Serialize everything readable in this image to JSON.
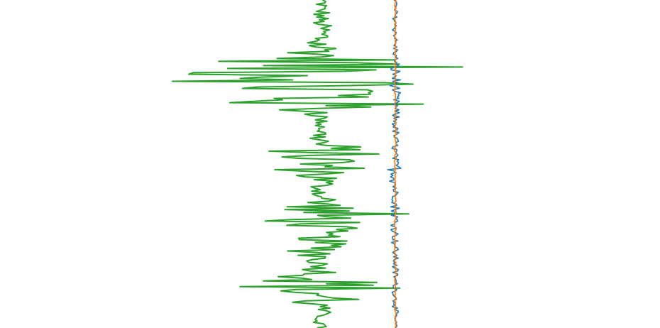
{
  "chart_data": {
    "type": "line",
    "orientation": "vertical-traces",
    "title": "",
    "xlabel": "",
    "ylabel": "",
    "axes_visible": false,
    "grid": false,
    "legend": "none",
    "y_samples": 230,
    "series": [
      {
        "color": "#2ca02c",
        "baseline": 0,
        "noise": 0.04,
        "envelope": [
          [
            0.0,
            0.04
          ],
          [
            0.03,
            0.05
          ],
          [
            0.06,
            0.03
          ],
          [
            0.09,
            0.07
          ],
          [
            0.12,
            0.1
          ],
          [
            0.15,
            0.12
          ],
          [
            0.17,
            0.2
          ],
          [
            0.19,
            0.55
          ],
          [
            0.21,
            0.72
          ],
          [
            0.23,
            0.75
          ],
          [
            0.25,
            0.7
          ],
          [
            0.27,
            0.75
          ],
          [
            0.29,
            0.65
          ],
          [
            0.31,
            0.6
          ],
          [
            0.33,
            0.35
          ],
          [
            0.35,
            0.05
          ],
          [
            0.37,
            0.04
          ],
          [
            0.39,
            0.03
          ],
          [
            0.41,
            0.05
          ],
          [
            0.43,
            0.08
          ],
          [
            0.45,
            0.22
          ],
          [
            0.47,
            0.3
          ],
          [
            0.49,
            0.28
          ],
          [
            0.51,
            0.25
          ],
          [
            0.53,
            0.2
          ],
          [
            0.55,
            0.1
          ],
          [
            0.57,
            0.05
          ],
          [
            0.59,
            0.04
          ],
          [
            0.61,
            0.12
          ],
          [
            0.63,
            0.18
          ],
          [
            0.65,
            0.45
          ],
          [
            0.67,
            0.3
          ],
          [
            0.69,
            0.2
          ],
          [
            0.71,
            0.1
          ],
          [
            0.73,
            0.12
          ],
          [
            0.75,
            0.15
          ],
          [
            0.77,
            0.18
          ],
          [
            0.79,
            0.08
          ],
          [
            0.81,
            0.05
          ],
          [
            0.83,
            0.1
          ],
          [
            0.85,
            0.25
          ],
          [
            0.87,
            0.42
          ],
          [
            0.89,
            0.45
          ],
          [
            0.91,
            0.38
          ],
          [
            0.93,
            0.05
          ],
          [
            0.96,
            0.04
          ],
          [
            1.0,
            0.03
          ]
        ]
      },
      {
        "color": "#1f77b4",
        "baseline": 0.35,
        "noise": 0.012,
        "envelope": [
          [
            0.0,
            0.01
          ],
          [
            0.2,
            0.015
          ],
          [
            0.21,
            0.03
          ],
          [
            0.3,
            0.02
          ],
          [
            0.5,
            0.015
          ],
          [
            0.51,
            0.04
          ],
          [
            0.53,
            0.03
          ],
          [
            0.62,
            0.015
          ],
          [
            0.63,
            0.035
          ],
          [
            0.64,
            0.02
          ],
          [
            1.0,
            0.01
          ]
        ]
      },
      {
        "color": "#ff7f0e",
        "baseline": 0.35,
        "noise": 0.004,
        "envelope": [
          [
            0.0,
            0.004
          ],
          [
            1.0,
            0.004
          ]
        ]
      }
    ]
  }
}
